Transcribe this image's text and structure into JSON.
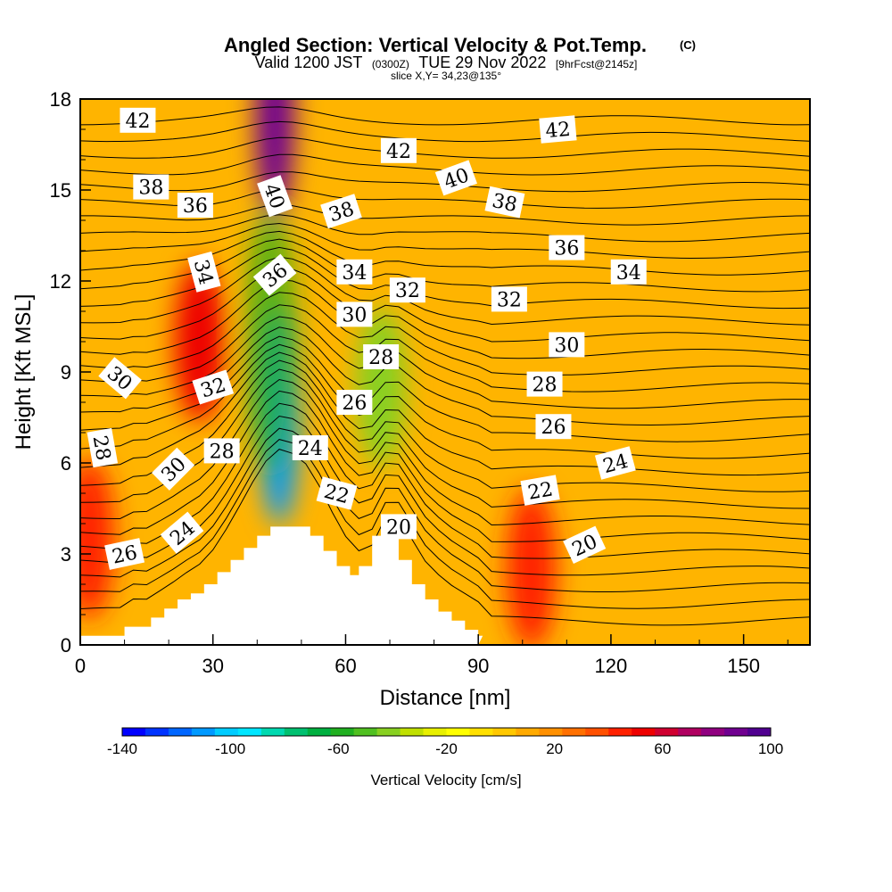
{
  "chart_data": {
    "type": "heatmap",
    "title": "Angled Section: Vertical Velocity & Pot.Temp.",
    "title_mark": "(C)",
    "subtitle_prefix": "Valid 1200 JST",
    "subtitle_utc": "(0300Z)",
    "subtitle_date": "TUE 29 Nov 2022",
    "subtitle_fcst": "[9hrFcst@2145z]",
    "slice": "slice X,Y= 34,23@135°",
    "xlabel": "Distance [nm]",
    "ylabel": "Height [Kft MSL]",
    "xlim": [
      0,
      165
    ],
    "ylim": [
      0,
      18
    ],
    "x_ticks": [
      "0",
      "30",
      "60",
      "90",
      "120",
      "150"
    ],
    "y_ticks": [
      "0",
      "3",
      "6",
      "9",
      "12",
      "15",
      "18"
    ],
    "colorbar": {
      "label": "Vertical Velocity [cm/s]",
      "range": [
        -140,
        100
      ],
      "step": 10,
      "tick_labels": [
        "-140",
        "-100",
        "-60",
        "-20",
        "20",
        "60",
        "100"
      ],
      "colors": [
        "#0000ff",
        "#0033ff",
        "#0066ff",
        "#0099ff",
        "#00ccff",
        "#00e6ff",
        "#00d9b0",
        "#00c070",
        "#00b040",
        "#20b020",
        "#50c020",
        "#88d020",
        "#c0e000",
        "#e8f000",
        "#ffff00",
        "#ffe000",
        "#ffc800",
        "#ffaa00",
        "#ff9000",
        "#ff7000",
        "#ff5000",
        "#ff2000",
        "#ee0000",
        "#d00030",
        "#b00060",
        "#900080",
        "#700090",
        "#500090"
      ]
    },
    "velocity_features": [
      {
        "kind": "downdraft",
        "x": 45,
        "y": 7.5,
        "value": -110
      },
      {
        "kind": "downdraft",
        "x": 68,
        "y": 8.5,
        "value": -40
      },
      {
        "kind": "updraft",
        "x": 44,
        "y": 17.5,
        "value": 90
      },
      {
        "kind": "updraft",
        "x": 27,
        "y": 10,
        "value": 50
      },
      {
        "kind": "updraft",
        "x": 102,
        "y": 2.5,
        "value": 40
      },
      {
        "kind": "updraft",
        "x": 2,
        "y": 3.5,
        "value": 40
      }
    ],
    "terrain_profile": {
      "x": [
        0,
        10,
        16,
        19,
        22,
        25,
        28,
        31,
        34,
        37,
        40,
        43,
        46,
        49,
        52,
        55,
        58,
        61,
        63,
        66,
        69,
        72,
        75,
        78,
        81,
        84,
        87,
        90
      ],
      "height": [
        0.3,
        0.6,
        0.9,
        1.2,
        1.5,
        1.7,
        2.0,
        2.4,
        2.8,
        3.2,
        3.6,
        3.9,
        3.9,
        3.9,
        3.6,
        3.1,
        2.6,
        2.3,
        2.6,
        3.6,
        3.6,
        2.8,
        2.0,
        1.5,
        1.1,
        0.8,
        0.5,
        0.3
      ]
    },
    "contour_labels": [
      {
        "text": "42",
        "x": 13,
        "y": 17.3,
        "angle": 0
      },
      {
        "text": "42",
        "x": 72,
        "y": 16.3,
        "angle": 0
      },
      {
        "text": "42",
        "x": 108,
        "y": 17.0,
        "angle": -5
      },
      {
        "text": "40",
        "x": 44,
        "y": 14.8,
        "angle": 70
      },
      {
        "text": "40",
        "x": 85,
        "y": 15.4,
        "angle": -20
      },
      {
        "text": "38",
        "x": 16,
        "y": 15.1,
        "angle": 0
      },
      {
        "text": "38",
        "x": 59,
        "y": 14.3,
        "angle": -18
      },
      {
        "text": "38",
        "x": 96,
        "y": 14.6,
        "angle": 12
      },
      {
        "text": "36",
        "x": 26,
        "y": 14.5,
        "angle": 0
      },
      {
        "text": "36",
        "x": 44,
        "y": 12.2,
        "angle": -40
      },
      {
        "text": "36",
        "x": 110,
        "y": 13.1,
        "angle": 0
      },
      {
        "text": "34",
        "x": 28,
        "y": 12.3,
        "angle": 75
      },
      {
        "text": "34",
        "x": 62,
        "y": 12.3,
        "angle": 0
      },
      {
        "text": "34",
        "x": 124,
        "y": 12.3,
        "angle": 0
      },
      {
        "text": "32",
        "x": 74,
        "y": 11.7,
        "angle": 0
      },
      {
        "text": "32",
        "x": 97,
        "y": 11.4,
        "angle": 0
      },
      {
        "text": "32",
        "x": 30,
        "y": 8.5,
        "angle": -18
      },
      {
        "text": "30",
        "x": 9,
        "y": 8.8,
        "angle": 40
      },
      {
        "text": "30",
        "x": 62,
        "y": 10.9,
        "angle": 0
      },
      {
        "text": "30",
        "x": 110,
        "y": 9.9,
        "angle": 0
      },
      {
        "text": "28",
        "x": 5,
        "y": 6.5,
        "angle": 80
      },
      {
        "text": "28",
        "x": 68,
        "y": 9.5,
        "angle": 0
      },
      {
        "text": "28",
        "x": 32,
        "y": 6.4,
        "angle": 0
      },
      {
        "text": "28",
        "x": 105,
        "y": 8.6,
        "angle": 0
      },
      {
        "text": "30",
        "x": 21,
        "y": 5.8,
        "angle": -45
      },
      {
        "text": "26",
        "x": 62,
        "y": 8.0,
        "angle": 0
      },
      {
        "text": "26",
        "x": 107,
        "y": 7.2,
        "angle": 0
      },
      {
        "text": "26",
        "x": 10,
        "y": 3.0,
        "angle": -12
      },
      {
        "text": "24",
        "x": 52,
        "y": 6.5,
        "angle": 0
      },
      {
        "text": "24",
        "x": 23,
        "y": 3.7,
        "angle": -40
      },
      {
        "text": "24",
        "x": 121,
        "y": 6.0,
        "angle": -15
      },
      {
        "text": "22",
        "x": 58,
        "y": 5.0,
        "angle": 15
      },
      {
        "text": "22",
        "x": 104,
        "y": 5.1,
        "angle": -10
      },
      {
        "text": "20",
        "x": 72,
        "y": 3.9,
        "angle": 0
      },
      {
        "text": "20",
        "x": 114,
        "y": 3.3,
        "angle": -25
      }
    ]
  }
}
